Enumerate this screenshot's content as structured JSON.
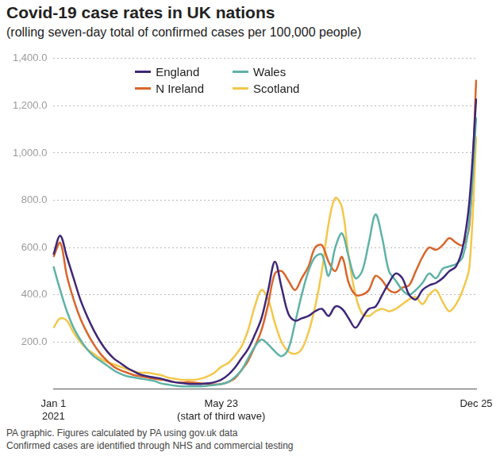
{
  "chart_data": {
    "type": "line",
    "title": "Covid-19 case rates in UK nations",
    "subtitle": "(rolling seven-day total of confirmed cases per 100,000 people)",
    "notes": [
      "PA graphic. Figures calculated by PA using gov.uk data",
      "Confirmed cases are identified through NHS and commercial testing"
    ],
    "categories": [
      "Jan 1\n2021",
      null,
      null,
      null,
      null,
      null,
      null,
      null,
      null,
      null,
      null,
      null,
      null,
      null,
      null,
      null,
      null,
      null,
      null,
      null,
      null,
      null,
      null,
      null,
      null,
      "May 23\n(start of third wave)",
      null,
      null,
      null,
      null,
      null,
      null,
      null,
      null,
      null,
      null,
      null,
      null,
      null,
      null,
      null,
      null,
      null,
      null,
      null,
      null,
      null,
      null,
      null,
      null,
      null,
      null,
      null,
      null,
      null,
      null,
      null,
      null,
      null,
      null,
      null,
      null,
      null,
      "Dec 25"
    ],
    "series": [
      {
        "name": "England",
        "color": "#3f2778",
        "values": [
          570,
          650,
          560,
          470,
          380,
          310,
          250,
          200,
          160,
          130,
          110,
          90,
          75,
          62,
          55,
          50,
          45,
          36,
          30,
          26,
          23,
          22,
          22,
          25,
          30,
          40,
          60,
          90,
          130,
          170,
          230,
          300,
          420,
          540,
          430,
          320,
          290,
          300,
          310,
          330,
          340,
          310,
          350,
          340,
          300,
          260,
          300,
          340,
          350,
          400,
          450,
          490,
          470,
          400,
          380,
          420,
          440,
          450,
          470,
          500,
          520,
          600,
          800,
          1230
        ]
      },
      {
        "name": "Wales",
        "color": "#5fb2a6",
        "values": [
          520,
          420,
          330,
          260,
          210,
          170,
          140,
          120,
          100,
          80,
          65,
          55,
          50,
          45,
          40,
          35,
          25,
          20,
          15,
          12,
          12,
          12,
          12,
          15,
          18,
          22,
          30,
          50,
          80,
          130,
          180,
          210,
          190,
          160,
          140,
          170,
          280,
          400,
          500,
          560,
          570,
          480,
          600,
          660,
          560,
          470,
          500,
          620,
          740,
          640,
          500,
          460,
          420,
          400,
          420,
          450,
          490,
          470,
          510,
          520,
          530,
          560,
          720,
          1150
        ]
      },
      {
        "name": "N Ireland",
        "color": "#d8662c",
        "values": [
          560,
          620,
          480,
          380,
          300,
          240,
          190,
          150,
          120,
          95,
          80,
          70,
          60,
          55,
          50,
          45,
          40,
          38,
          30,
          28,
          30,
          28,
          25,
          22,
          20,
          22,
          30,
          45,
          80,
          120,
          180,
          250,
          360,
          490,
          500,
          460,
          420,
          470,
          520,
          600,
          610,
          540,
          500,
          560,
          450,
          400,
          400,
          420,
          480,
          460,
          420,
          410,
          430,
          440,
          500,
          560,
          600,
          590,
          610,
          640,
          620,
          610,
          700,
          1310
        ]
      },
      {
        "name": "Scotland",
        "color": "#f3c74a",
        "values": [
          260,
          300,
          290,
          240,
          200,
          170,
          150,
          130,
          115,
          105,
          95,
          85,
          75,
          70,
          70,
          65,
          60,
          50,
          45,
          40,
          40,
          40,
          45,
          55,
          70,
          95,
          110,
          140,
          180,
          250,
          350,
          420,
          380,
          280,
          200,
          160,
          150,
          170,
          240,
          350,
          500,
          700,
          810,
          770,
          560,
          400,
          320,
          310,
          330,
          340,
          330,
          340,
          360,
          380,
          390,
          360,
          400,
          420,
          370,
          330,
          360,
          420,
          520,
          1070
        ]
      }
    ],
    "ylim": [
      0,
      1400
    ],
    "yticks": [
      {
        "value": 200,
        "label": "200.0"
      },
      {
        "value": 400,
        "label": "400.0"
      },
      {
        "value": 600,
        "label": "600.0"
      },
      {
        "value": 800,
        "label": "800.0"
      },
      {
        "value": 1000,
        "label": "1,000.0"
      },
      {
        "value": 1200,
        "label": "1,200.0"
      },
      {
        "value": 1400,
        "label": "1,400.0"
      }
    ],
    "grid": true,
    "legend": "top"
  }
}
